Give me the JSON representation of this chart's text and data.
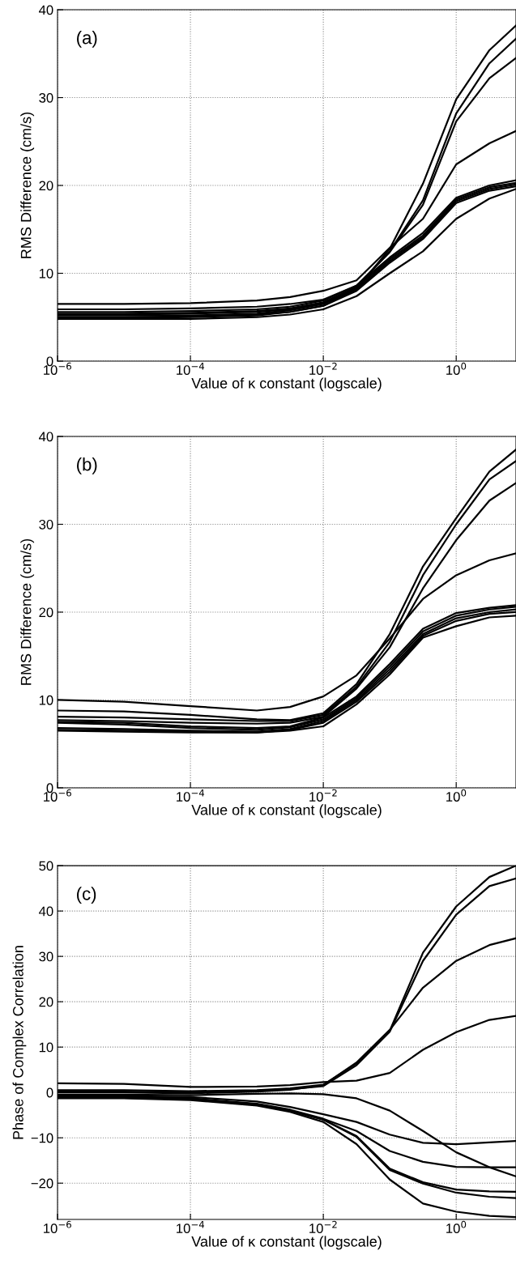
{
  "chart_data": [
    {
      "type": "line",
      "xlabel": "Value of κ constant (logscale)",
      "ylabel": "RMS Difference (cm/s)",
      "annotations": [
        "(a)"
      ],
      "log": "x",
      "grid": true,
      "xlim": [
        1e-06,
        7.94
      ],
      "ylim": [
        0,
        40
      ],
      "xticks": [
        {
          "value": 1e-06,
          "label": "10$^{−6}$"
        },
        {
          "value": 0.0001,
          "label": "10$^{−4}$"
        },
        {
          "value": 0.01,
          "label": "10$^{−2}$"
        },
        {
          "value": 1,
          "label": "10$^{0}$"
        }
      ],
      "yticks": [
        0,
        10,
        20,
        30,
        40
      ],
      "x": [
        1e-06,
        1e-05,
        0.0001,
        0.001,
        0.00316,
        0.01,
        0.0316,
        0.1,
        0.316,
        1,
        3.16,
        7.94
      ],
      "series": [
        {
          "color": "#000000",
          "values": [
            5.0,
            5.0,
            5.1,
            5.3,
            5.6,
            6.3,
            8.2,
            12.8,
            20.2,
            29.8,
            35.4,
            38.2
          ]
        },
        {
          "color": "#000000",
          "values": [
            5.3,
            5.3,
            5.4,
            5.6,
            5.9,
            6.6,
            8.4,
            12.5,
            18.3,
            28.2,
            33.9,
            36.7
          ]
        },
        {
          "color": "#000000",
          "values": [
            5.6,
            5.6,
            5.7,
            5.9,
            6.2,
            6.9,
            8.6,
            12.4,
            17.8,
            27.3,
            32.2,
            34.5
          ]
        },
        {
          "color": "#000000",
          "values": [
            6.5,
            6.5,
            6.6,
            6.9,
            7.3,
            8.0,
            9.2,
            12.9,
            16.2,
            22.4,
            24.8,
            26.2
          ]
        },
        {
          "color": "#000000",
          "values": [
            5.9,
            5.9,
            6.0,
            6.2,
            6.5,
            7.0,
            8.6,
            11.8,
            14.6,
            18.6,
            20.0,
            20.6
          ]
        },
        {
          "color": "#000000",
          "values": [
            5.4,
            5.4,
            5.5,
            5.7,
            6.0,
            6.7,
            8.4,
            11.6,
            14.3,
            18.4,
            19.8,
            20.3
          ]
        },
        {
          "color": "#000000",
          "values": [
            5.2,
            5.2,
            5.2,
            5.4,
            5.8,
            6.5,
            8.2,
            11.4,
            14.1,
            18.2,
            19.6,
            20.1
          ]
        },
        {
          "color": "#000000",
          "values": [
            4.9,
            4.9,
            5.0,
            5.2,
            5.6,
            6.3,
            8.0,
            11.2,
            13.9,
            18.0,
            19.4,
            19.9
          ]
        },
        {
          "color": "#000000",
          "values": [
            4.8,
            4.8,
            4.8,
            5.0,
            5.3,
            5.9,
            7.4,
            10.0,
            12.5,
            16.2,
            18.5,
            19.6
          ]
        }
      ]
    },
    {
      "type": "line",
      "xlabel": "Value of κ constant (logscale)",
      "ylabel": "RMS Difference (cm/s)",
      "annotations": [
        "(b)"
      ],
      "log": "x",
      "grid": true,
      "xlim": [
        1e-06,
        7.94
      ],
      "ylim": [
        0,
        40
      ],
      "xticks": [
        {
          "value": 1e-06,
          "label": "10$^{−6}$"
        },
        {
          "value": 0.0001,
          "label": "10$^{−4}$"
        },
        {
          "value": 0.01,
          "label": "10$^{−2}$"
        },
        {
          "value": 1,
          "label": "10$^{0}$"
        }
      ],
      "yticks": [
        0,
        10,
        20,
        30,
        40
      ],
      "x": [
        1e-06,
        1e-05,
        0.0001,
        0.001,
        0.00316,
        0.01,
        0.0316,
        0.1,
        0.316,
        1,
        3.16,
        7.94
      ],
      "series": [
        {
          "color": "#000000",
          "values": [
            10.0,
            9.8,
            9.3,
            8.8,
            9.2,
            10.4,
            12.8,
            17.0,
            21.5,
            24.2,
            25.9,
            26.7
          ]
        },
        {
          "color": "#000000",
          "values": [
            8.8,
            8.7,
            8.3,
            7.8,
            7.7,
            8.5,
            11.8,
            17.5,
            25.2,
            30.7,
            36.0,
            38.5
          ]
        },
        {
          "color": "#000000",
          "values": [
            8.1,
            8.0,
            7.8,
            7.6,
            7.6,
            8.3,
            11.5,
            16.6,
            24.2,
            30.0,
            35.1,
            37.2
          ]
        },
        {
          "color": "#000000",
          "values": [
            7.7,
            7.6,
            7.4,
            7.3,
            7.4,
            8.1,
            11.3,
            16.0,
            22.7,
            28.2,
            32.7,
            34.7
          ]
        },
        {
          "color": "#000000",
          "values": [
            7.5,
            7.4,
            7.0,
            6.8,
            7.0,
            8.0,
            10.4,
            14.1,
            18.1,
            19.9,
            20.5,
            20.8
          ]
        },
        {
          "color": "#000000",
          "values": [
            7.4,
            7.2,
            6.8,
            6.6,
            6.9,
            7.8,
            10.2,
            13.8,
            17.8,
            19.6,
            20.3,
            20.6
          ]
        },
        {
          "color": "#000000",
          "values": [
            6.8,
            6.7,
            6.5,
            6.4,
            6.7,
            7.6,
            10.0,
            13.5,
            17.5,
            19.3,
            20.0,
            20.3
          ]
        },
        {
          "color": "#000000",
          "values": [
            6.6,
            6.5,
            6.4,
            6.3,
            6.6,
            7.4,
            9.8,
            13.2,
            17.3,
            19.0,
            19.8,
            20.0
          ]
        },
        {
          "color": "#000000",
          "values": [
            6.5,
            6.4,
            6.3,
            6.3,
            6.5,
            7.0,
            9.5,
            12.9,
            17.1,
            18.4,
            19.4,
            19.6
          ]
        }
      ]
    },
    {
      "type": "line",
      "xlabel": "Value of κ constant (logscale)",
      "ylabel": "Phase of Complex Correlation",
      "annotations": [
        "(c)"
      ],
      "log": "x",
      "grid": true,
      "xlim": [
        1e-06,
        7.94
      ],
      "ylim": [
        -28,
        50
      ],
      "xticks": [
        {
          "value": 1e-06,
          "label": "10$^{−6}$"
        },
        {
          "value": 0.0001,
          "label": "10$^{−4}$"
        },
        {
          "value": 0.01,
          "label": "10$^{−2}$"
        },
        {
          "value": 1,
          "label": "10$^{0}$"
        }
      ],
      "yticks": [
        {
          "value": -20,
          "label": "−20"
        },
        {
          "value": -10,
          "label": "−10"
        },
        0,
        10,
        20,
        30,
        40,
        50
      ],
      "x": [
        1e-06,
        1e-05,
        0.0001,
        0.001,
        0.00316,
        0.01,
        0.0316,
        0.1,
        0.316,
        1,
        3.16,
        7.94
      ],
      "series": [
        {
          "color": "#000000",
          "values": [
            0.5,
            0.5,
            0.3,
            0.5,
            0.9,
            1.7,
            6.4,
            13.6,
            30.8,
            41.0,
            47.5,
            50.0
          ]
        },
        {
          "color": "#000000",
          "values": [
            0.2,
            0.2,
            0.0,
            0.3,
            0.7,
            1.4,
            6.0,
            13.4,
            29.0,
            39.2,
            45.5,
            47.2
          ]
        },
        {
          "color": "#000000",
          "values": [
            0.0,
            0.0,
            -0.2,
            0.2,
            0.6,
            1.6,
            6.6,
            13.8,
            23.1,
            29.0,
            32.5,
            34.0
          ]
        },
        {
          "color": "#000000",
          "values": [
            2.0,
            1.9,
            1.2,
            1.3,
            1.6,
            2.3,
            2.6,
            4.3,
            9.4,
            13.3,
            16.0,
            16.9
          ]
        },
        {
          "color": "#000000",
          "values": [
            -0.5,
            -0.5,
            -0.6,
            -0.3,
            -0.2,
            -0.4,
            -1.3,
            -4.0,
            -8.5,
            -13.2,
            -16.5,
            -18.5
          ]
        },
        {
          "color": "#000000",
          "values": [
            -0.8,
            -0.8,
            -1.0,
            -2.0,
            -3.2,
            -4.8,
            -6.5,
            -9.3,
            -11.1,
            -11.4,
            -11.0,
            -10.7
          ]
        },
        {
          "color": "#000000",
          "values": [
            -1.0,
            -1.0,
            -1.3,
            -2.5,
            -3.8,
            -5.8,
            -8.5,
            -12.9,
            -15.3,
            -16.4,
            -16.5,
            -16.5
          ]
        },
        {
          "color": "#000000",
          "values": [
            -1.2,
            -1.2,
            -1.5,
            -2.7,
            -4.0,
            -6.0,
            -9.6,
            -16.8,
            -19.8,
            -21.4,
            -21.8,
            -21.9
          ]
        },
        {
          "color": "#000000",
          "values": [
            -1.1,
            -1.1,
            -1.4,
            -2.6,
            -4.0,
            -6.0,
            -9.8,
            -17.1,
            -20.1,
            -22.1,
            -23.0,
            -23.3
          ]
        },
        {
          "color": "#000000",
          "values": [
            -1.3,
            -1.3,
            -1.7,
            -2.9,
            -4.3,
            -6.5,
            -11.4,
            -19.2,
            -24.5,
            -26.3,
            -27.2,
            -27.5
          ]
        }
      ]
    }
  ]
}
